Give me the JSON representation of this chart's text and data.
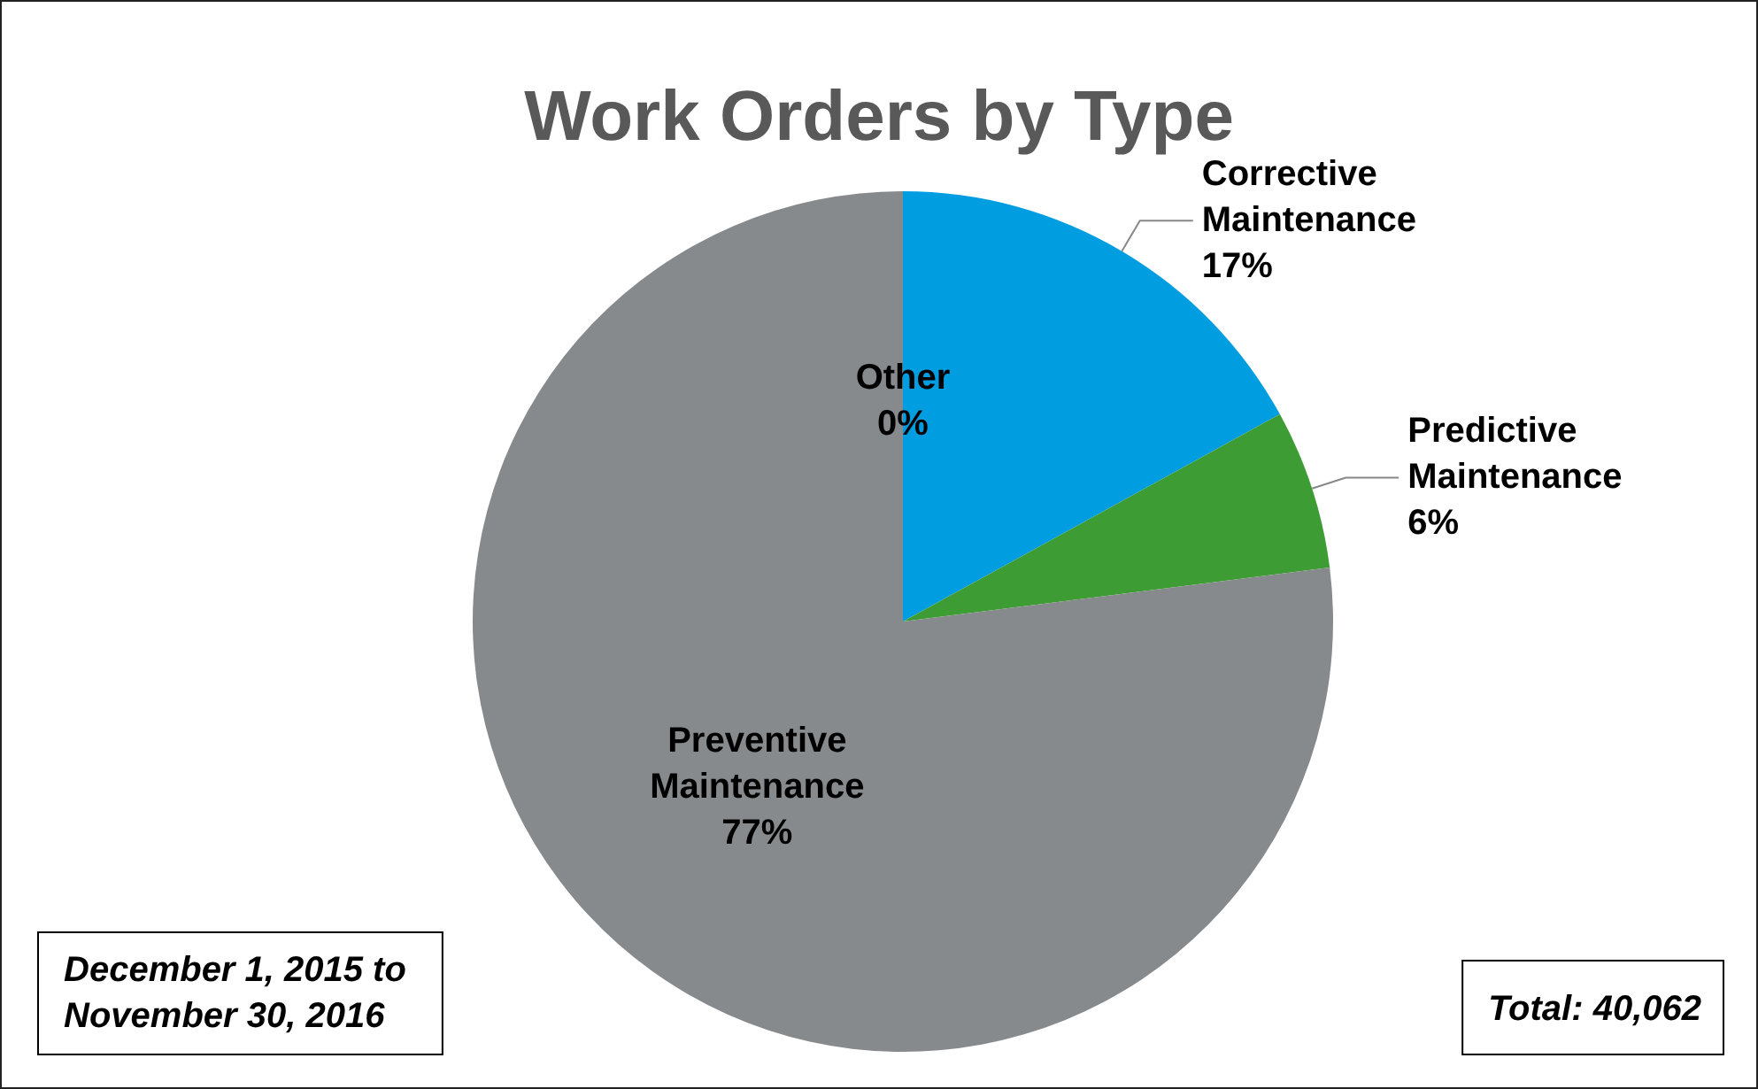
{
  "chart_data": {
    "type": "pie",
    "title": "Work Orders by Type",
    "categories": [
      "Corrective\nMaintenance",
      "Predictive\nMaintenance",
      "Preventive\nMaintenance",
      "Other"
    ],
    "values": [
      17,
      6,
      77,
      0
    ],
    "value_labels": [
      "17%",
      "6%",
      "77%",
      "0%"
    ],
    "colors": [
      "#009de0",
      "#3e9c35",
      "#878a8c",
      "#595959"
    ],
    "legend": false,
    "annotations": [
      "December 1, 2015 to\nNovember 30, 2016",
      "Total: 40,062"
    ]
  }
}
